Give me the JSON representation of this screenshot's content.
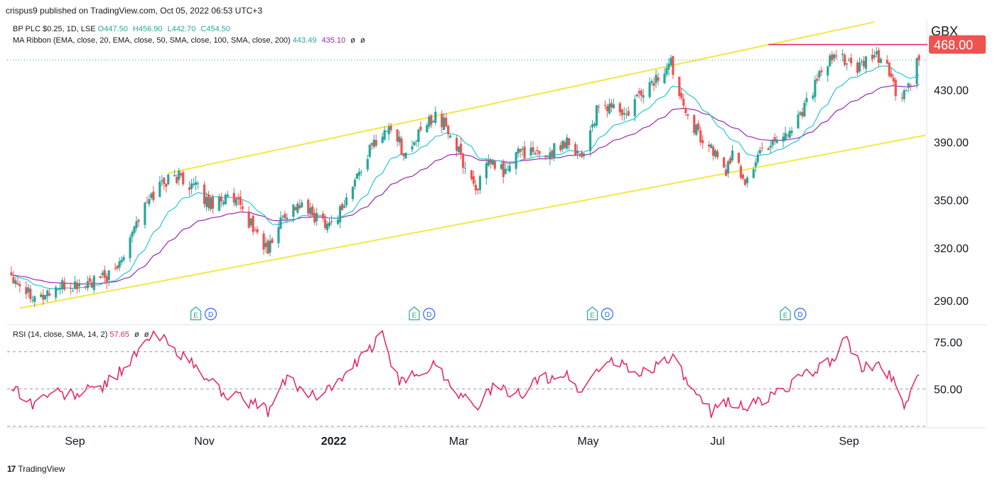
{
  "header": {
    "text": "crispus9 published on TradingView.com, Oct 05, 2022 06:53 UTC+3"
  },
  "legend": {
    "main": {
      "symbol": "BP PLC $0.25, 1D, LSE",
      "o": "O447.50",
      "h": "H456.90",
      "l": "L442.70",
      "c": "C454.50"
    },
    "ribbon": {
      "label": "MA Ribbon (EMA, close, 20, EMA, close, 50, SMA, close, 100, SMA, close, 200)",
      "v1": "443.49",
      "v2": "435.10",
      "v3": "ø",
      "v4": "ø"
    },
    "rsi": {
      "label": "RSI (14, close, SMA, 14, 2)",
      "v1": "57.65",
      "v2": "ø",
      "v3": "ø"
    }
  },
  "currency": "GBX",
  "footer": {
    "brand": "TradingView"
  },
  "colors": {
    "up": "#26a69a",
    "down": "#ef5350",
    "ema20": "#26c6da",
    "ema50": "#9c27b0",
    "channel": "#f5e642",
    "resistance": "#e91e63",
    "rsi": "#e91e63",
    "price_tag": "#ef5350"
  },
  "chart_data": [
    {
      "type": "candlestick",
      "title": "BP PLC $0.25, 1D, LSE",
      "y_scale": "log",
      "ylim": [
        278,
        490
      ],
      "y_ticks": [
        "290.00",
        "320.00",
        "350.00",
        "390.00",
        "430.00"
      ],
      "x_ticks": [
        "Sep",
        "Nov",
        "2022",
        "Mar",
        "May",
        "Jul",
        "Sep"
      ],
      "last_price_label": "468.00",
      "price_anchors": [
        [
          "2021-08-02",
          305
        ],
        [
          "2021-08-09",
          296
        ],
        [
          "2021-08-16",
          292
        ],
        [
          "2021-08-23",
          297
        ],
        [
          "2021-09-01",
          298
        ],
        [
          "2021-09-10",
          300
        ],
        [
          "2021-09-20",
          305
        ],
        [
          "2021-09-28",
          332
        ],
        [
          "2021-10-06",
          350
        ],
        [
          "2021-10-12",
          362
        ],
        [
          "2021-10-20",
          366
        ],
        [
          "2021-10-28",
          358
        ],
        [
          "2021-11-03",
          348
        ],
        [
          "2021-11-10",
          352
        ],
        [
          "2021-11-18",
          345
        ],
        [
          "2021-11-25",
          330
        ],
        [
          "2021-12-01",
          318
        ],
        [
          "2021-12-08",
          340
        ],
        [
          "2021-12-15",
          347
        ],
        [
          "2021-12-22",
          340
        ],
        [
          "2021-12-31",
          335
        ],
        [
          "2022-01-07",
          350
        ],
        [
          "2022-01-14",
          372
        ],
        [
          "2022-01-21",
          392
        ],
        [
          "2022-01-28",
          402
        ],
        [
          "2022-02-04",
          380
        ],
        [
          "2022-02-11",
          397
        ],
        [
          "2022-02-18",
          412
        ],
        [
          "2022-02-25",
          396
        ],
        [
          "2022-03-04",
          372
        ],
        [
          "2022-03-09",
          358
        ],
        [
          "2022-03-16",
          375
        ],
        [
          "2022-03-23",
          368
        ],
        [
          "2022-03-30",
          385
        ],
        [
          "2022-04-06",
          380
        ],
        [
          "2022-04-13",
          382
        ],
        [
          "2022-04-21",
          392
        ],
        [
          "2022-04-28",
          380
        ],
        [
          "2022-05-05",
          412
        ],
        [
          "2022-05-12",
          418
        ],
        [
          "2022-05-19",
          408
        ],
        [
          "2022-05-26",
          428
        ],
        [
          "2022-06-03",
          440
        ],
        [
          "2022-06-09",
          452
        ],
        [
          "2022-06-14",
          425
        ],
        [
          "2022-06-21",
          398
        ],
        [
          "2022-06-28",
          385
        ],
        [
          "2022-07-05",
          370
        ],
        [
          "2022-07-08",
          380
        ],
        [
          "2022-07-14",
          362
        ],
        [
          "2022-07-21",
          382
        ],
        [
          "2022-07-28",
          393
        ],
        [
          "2022-08-04",
          398
        ],
        [
          "2022-08-11",
          418
        ],
        [
          "2022-08-18",
          440
        ],
        [
          "2022-08-24",
          455
        ],
        [
          "2022-08-29",
          458
        ],
        [
          "2022-09-05",
          445
        ],
        [
          "2022-09-12",
          458
        ],
        [
          "2022-09-19",
          452
        ],
        [
          "2022-09-23",
          425
        ],
        [
          "2022-09-28",
          428
        ],
        [
          "2022-10-04",
          454.5
        ]
      ],
      "channel": {
        "upper": [
          [
            "2021-10-15",
            368
          ],
          [
            "2022-09-13",
            488
          ]
        ],
        "lower": [
          [
            "2021-08-06",
            286
          ],
          [
            "2022-10-07",
            395
          ]
        ]
      },
      "resistance": {
        "value": 468,
        "from": "2022-07-25",
        "to": "2022-10-07"
      },
      "events": [
        {
          "date": "2021-10-28",
          "label": "E"
        },
        {
          "date": "2021-11-04",
          "label": "D"
        },
        {
          "date": "2022-02-08",
          "label": "E"
        },
        {
          "date": "2022-02-15",
          "label": "D"
        },
        {
          "date": "2022-05-03",
          "label": "E"
        },
        {
          "date": "2022-05-10",
          "label": "D"
        },
        {
          "date": "2022-08-02",
          "label": "E"
        },
        {
          "date": "2022-08-09",
          "label": "D"
        }
      ]
    },
    {
      "type": "line",
      "title": "RSI (14, close, SMA, 14, 2)",
      "ylim": [
        30,
        84
      ],
      "y_ticks": [
        "50.00",
        "75.00"
      ],
      "bands": [
        30,
        50,
        70
      ],
      "rsi_anchors": [
        [
          "2021-08-02",
          52
        ],
        [
          "2021-08-12",
          42
        ],
        [
          "2021-08-20",
          48
        ],
        [
          "2021-09-01",
          47
        ],
        [
          "2021-09-15",
          52
        ],
        [
          "2021-09-28",
          66
        ],
        [
          "2021-10-08",
          79
        ],
        [
          "2021-10-15",
          75
        ],
        [
          "2021-10-27",
          62
        ],
        [
          "2021-11-10",
          48
        ],
        [
          "2021-11-25",
          42
        ],
        [
          "2021-12-01",
          38
        ],
        [
          "2021-12-10",
          56
        ],
        [
          "2021-12-22",
          46
        ],
        [
          "2022-01-05",
          55
        ],
        [
          "2022-01-14",
          66
        ],
        [
          "2022-01-24",
          79
        ],
        [
          "2022-02-01",
          52
        ],
        [
          "2022-02-11",
          60
        ],
        [
          "2022-02-18",
          63
        ],
        [
          "2022-03-01",
          48
        ],
        [
          "2022-03-08",
          40
        ],
        [
          "2022-03-18",
          51
        ],
        [
          "2022-03-28",
          46
        ],
        [
          "2022-04-08",
          55
        ],
        [
          "2022-04-20",
          58
        ],
        [
          "2022-04-28",
          48
        ],
        [
          "2022-05-06",
          62
        ],
        [
          "2022-05-13",
          65
        ],
        [
          "2022-05-24",
          58
        ],
        [
          "2022-06-03",
          63
        ],
        [
          "2022-06-09",
          68
        ],
        [
          "2022-06-21",
          45
        ],
        [
          "2022-06-28",
          38
        ],
        [
          "2022-07-06",
          44
        ],
        [
          "2022-07-15",
          40
        ],
        [
          "2022-07-26",
          46
        ],
        [
          "2022-08-05",
          53
        ],
        [
          "2022-08-15",
          59
        ],
        [
          "2022-08-25",
          67
        ],
        [
          "2022-08-31",
          77
        ],
        [
          "2022-09-07",
          60
        ],
        [
          "2022-09-14",
          63
        ],
        [
          "2022-09-21",
          57
        ],
        [
          "2022-09-27",
          42
        ],
        [
          "2022-10-04",
          57.65
        ]
      ]
    }
  ]
}
